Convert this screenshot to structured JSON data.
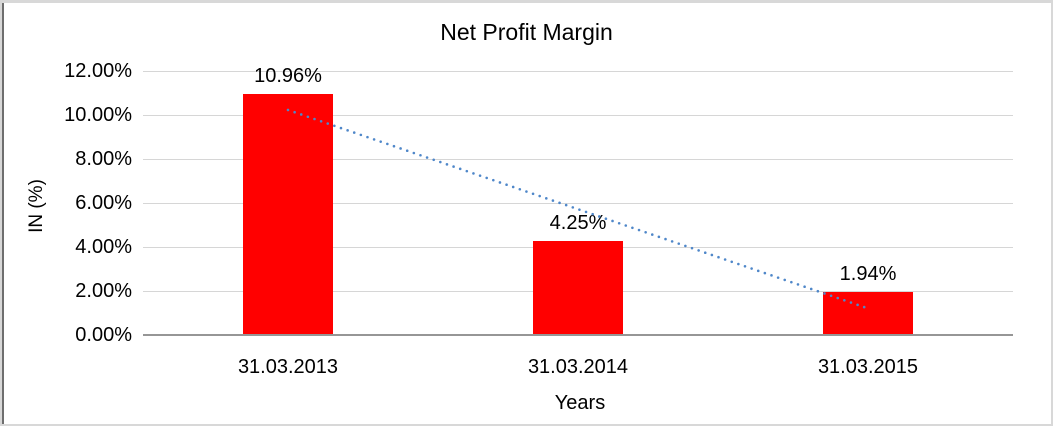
{
  "chart_data": {
    "type": "bar",
    "title": "Net Profit Margin",
    "xlabel": "Years",
    "ylabel": "IN (%)",
    "categories": [
      "31.03.2013",
      "31.03.2014",
      "31.03.2015"
    ],
    "values": [
      10.96,
      4.25,
      1.94
    ],
    "data_labels": [
      "10.96%",
      "4.25%",
      "1.94%"
    ],
    "ytick_labels": [
      "0.00%",
      "2.00%",
      "4.00%",
      "6.00%",
      "8.00%",
      "10.00%",
      "12.00%"
    ],
    "ylim": [
      0,
      12
    ],
    "ytick_step": 2,
    "grid": "horizontal",
    "legend": "none",
    "bar_color": "#FF0000",
    "trendline": {
      "type": "linear",
      "style": "dotted",
      "color": "#4F87C9",
      "fit_values": [
        10.23,
        5.72,
        1.21
      ]
    }
  }
}
